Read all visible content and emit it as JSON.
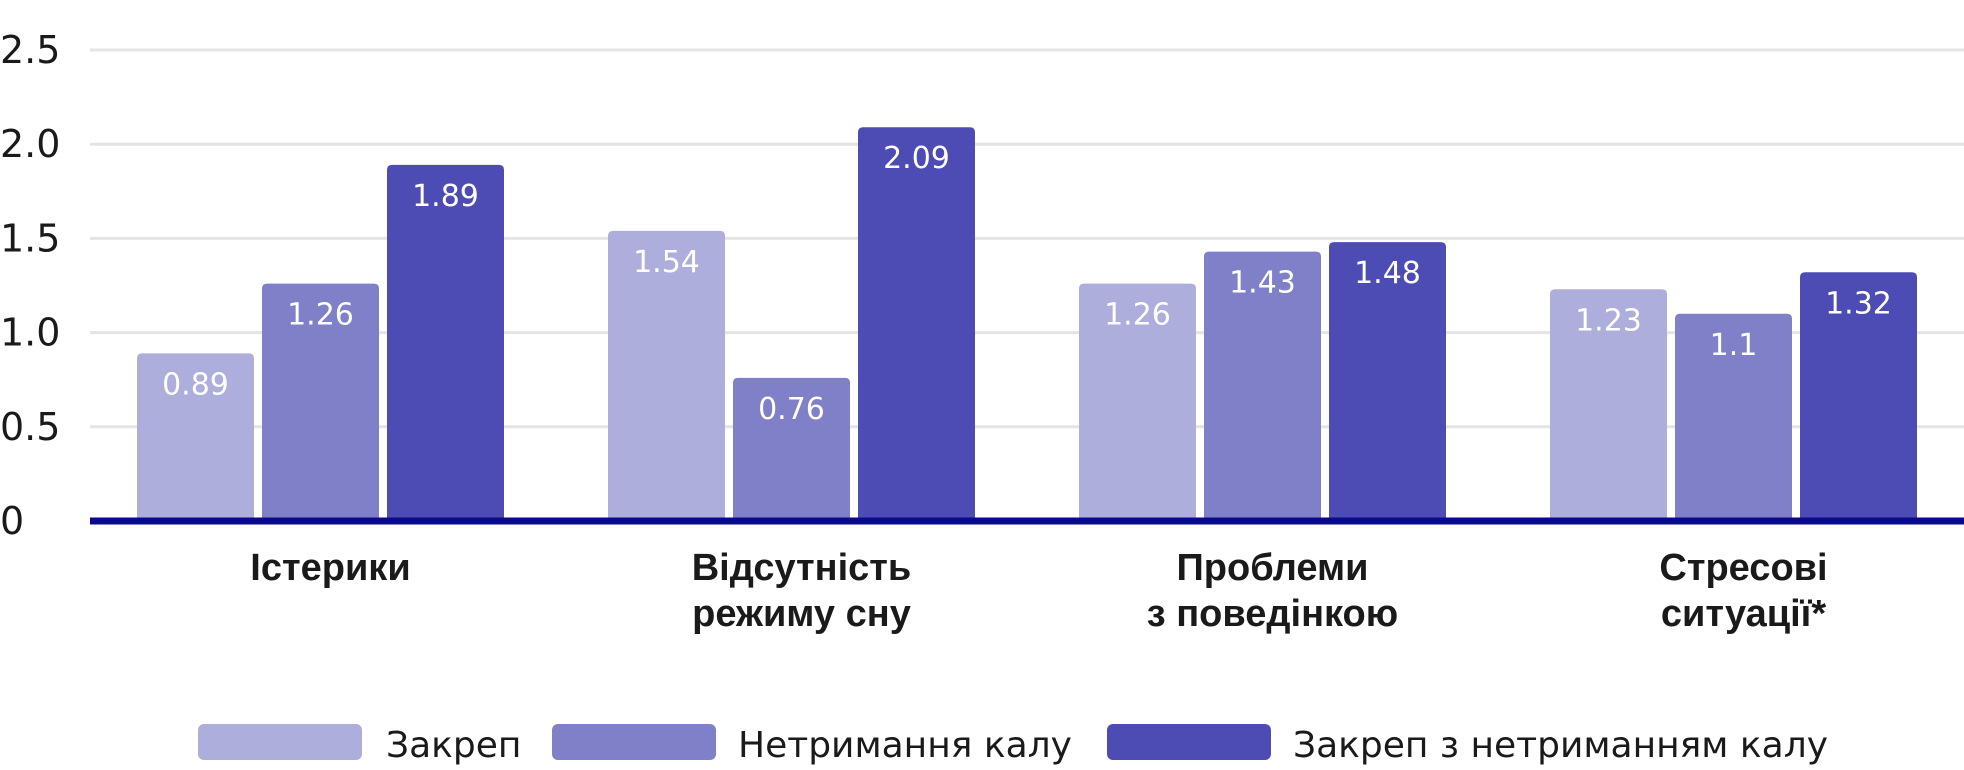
{
  "chart_data": {
    "type": "bar",
    "title": "",
    "xlabel": "",
    "ylabel": "",
    "ylim": [
      0,
      2.5
    ],
    "yticks": [
      "0",
      "0.5",
      "1.0",
      "1.5",
      "2.0",
      "2.5"
    ],
    "grid": true,
    "legend_position": "bottom",
    "categories": [
      [
        "Істерики"
      ],
      [
        "Відсутність",
        "режиму сну"
      ],
      [
        "Проблеми",
        "з поведінкою"
      ],
      [
        "Стресові",
        "ситуації*"
      ]
    ],
    "series": [
      {
        "name": "Закреп",
        "color": "#aeaedc",
        "values": [
          0.89,
          1.54,
          1.26,
          1.23
        ],
        "labels": [
          "0.89",
          "1.54",
          "1.26",
          "1.23"
        ]
      },
      {
        "name": "Нетримання калу",
        "color": "#8080c8",
        "values": [
          1.26,
          0.76,
          1.43,
          1.1
        ],
        "labels": [
          "1.26",
          "0.76",
          "1.43",
          "1.1"
        ]
      },
      {
        "name": "Закреп з нетриманням калу",
        "color": "#4c4cb4",
        "values": [
          1.89,
          2.09,
          1.48,
          1.32
        ],
        "labels": [
          "1.89",
          "2.09",
          "1.48",
          "1.32"
        ]
      }
    ],
    "colors": {
      "gridline": "#e4e4e4",
      "baseline": "#0a0a8c"
    }
  }
}
